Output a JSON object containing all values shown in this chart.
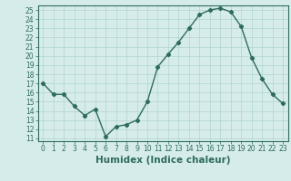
{
  "title": "",
  "xlabel": "Humidex (Indice chaleur)",
  "ylabel": "",
  "x": [
    0,
    1,
    2,
    3,
    4,
    5,
    6,
    7,
    8,
    9,
    10,
    11,
    12,
    13,
    14,
    15,
    16,
    17,
    18,
    19,
    20,
    21,
    22,
    23
  ],
  "y": [
    17.0,
    15.8,
    15.8,
    14.5,
    13.5,
    14.2,
    11.2,
    12.3,
    12.5,
    13.0,
    15.0,
    18.8,
    20.2,
    21.5,
    23.0,
    24.5,
    25.0,
    25.2,
    24.8,
    23.2,
    19.8,
    17.5,
    15.8,
    14.8
  ],
  "line_color": "#2e6b5e",
  "marker": "D",
  "marker_size": 2.2,
  "bg_color": "#d6ecea",
  "grid_color": "#b0d4d0",
  "ylim": [
    10.7,
    25.5
  ],
  "xlim": [
    -0.5,
    23.5
  ],
  "yticks": [
    11,
    12,
    13,
    14,
    15,
    16,
    17,
    18,
    19,
    20,
    21,
    22,
    23,
    24,
    25
  ],
  "xticks": [
    0,
    1,
    2,
    3,
    4,
    5,
    6,
    7,
    8,
    9,
    10,
    11,
    12,
    13,
    14,
    15,
    16,
    17,
    18,
    19,
    20,
    21,
    22,
    23
  ],
  "tick_fontsize": 5.5,
  "xlabel_fontsize": 7.5,
  "line_width": 1.0
}
